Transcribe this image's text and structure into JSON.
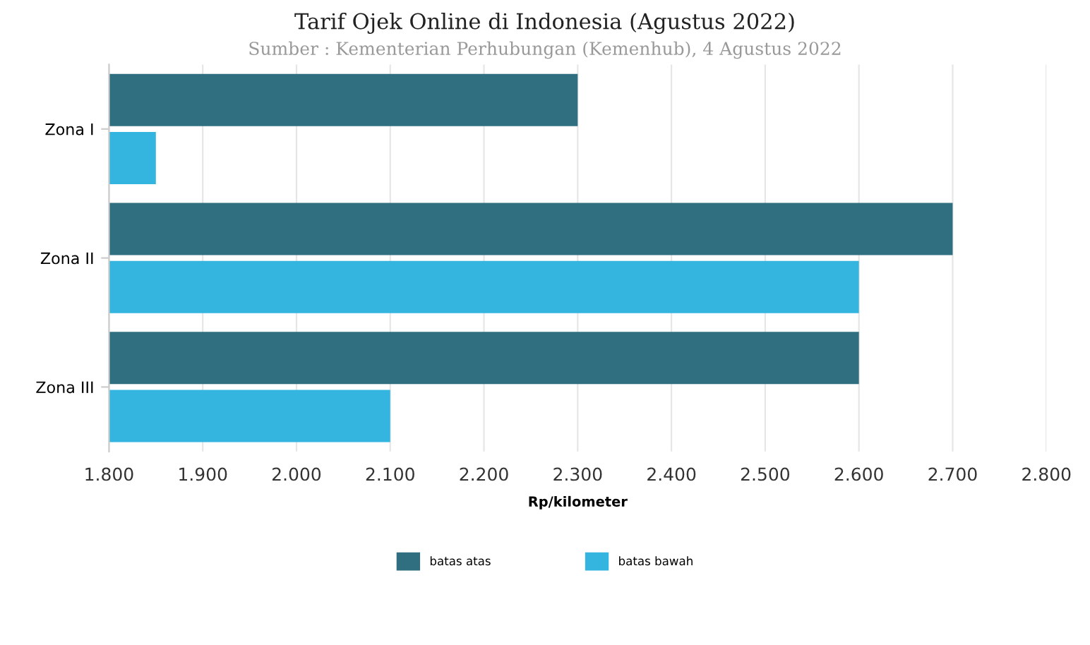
{
  "chart_data": {
    "type": "bar",
    "orientation": "horizontal",
    "title": "Tarif Ojek Online di Indonesia (Agustus 2022)",
    "subtitle": "Sumber : Kementerian Perhubungan (Kemenhub), 4 Agustus 2022",
    "xlabel": "Rp/kilometer",
    "categories": [
      "Zona I",
      "Zona II",
      "Zona III"
    ],
    "series": [
      {
        "name": "batas atas",
        "color": "#306f80",
        "values": [
          2300,
          2700,
          2600
        ]
      },
      {
        "name": "batas bawah",
        "color": "#33b5e0",
        "values": [
          1850,
          2600,
          2100
        ]
      }
    ],
    "xlim": [
      1800,
      2800
    ],
    "xticks": [
      {
        "value": 1800,
        "label": "1.800"
      },
      {
        "value": 1900,
        "label": "1.900"
      },
      {
        "value": 2000,
        "label": "2.000"
      },
      {
        "value": 2100,
        "label": "2.100"
      },
      {
        "value": 2200,
        "label": "2.200"
      },
      {
        "value": 2300,
        "label": "2.300"
      },
      {
        "value": 2400,
        "label": "2.400"
      },
      {
        "value": 2500,
        "label": "2.500"
      },
      {
        "value": 2600,
        "label": "2.600"
      },
      {
        "value": 2700,
        "label": "2.700"
      },
      {
        "value": 2800,
        "label": "2.800"
      }
    ],
    "grid": "x",
    "legend": "bottom"
  }
}
